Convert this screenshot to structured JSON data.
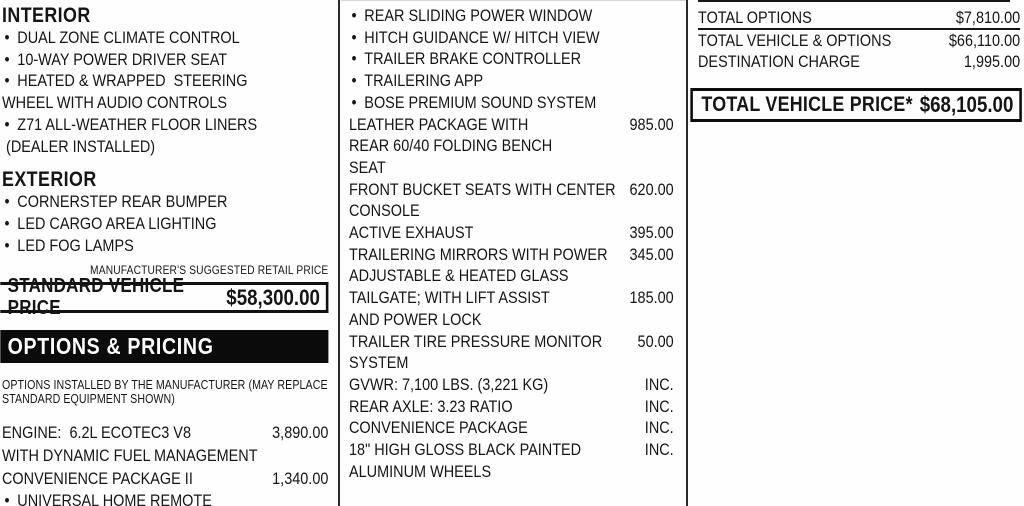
{
  "glyphs": {
    "bullet": "•"
  },
  "colors": {
    "ink": "#151515",
    "banner_bg": "#0b0b0b",
    "paper": "#fefefe"
  },
  "columns": {
    "left": {
      "rows": [
        {
          "t": "h1",
          "text": "INTERIOR"
        },
        {
          "t": "li",
          "lines": [
            "DUAL ZONE CLIMATE CONTROL"
          ]
        },
        {
          "t": "li",
          "lines": [
            "10-WAY POWER DRIVER SEAT"
          ]
        },
        {
          "t": "li",
          "lines": [
            "HEATED & WRAPPED  STEERING",
            "WHEEL WITH AUDIO CONTROLS"
          ]
        },
        {
          "t": "li",
          "lines": [
            "Z71 ALL-WEATHER FLOOR LINERS",
            " (DEALER INSTALLED)"
          ]
        },
        {
          "t": "h1",
          "text": "EXTERIOR"
        },
        {
          "t": "li",
          "lines": [
            "CORNERSTEP REAR BUMPER"
          ]
        },
        {
          "t": "li",
          "lines": [
            "LED CARGO AREA LIGHTING"
          ]
        },
        {
          "t": "li",
          "lines": [
            "LED FOG LAMPS"
          ]
        },
        {
          "t": "msrp",
          "text": "MANUFACTURER'S SUGGESTED RETAIL PRICE"
        },
        {
          "t": "pricebox",
          "label": "STANDARD VEHICLE PRICE",
          "value": "$58,300.00"
        },
        {
          "t": "banner",
          "text": "OPTIONS & PRICING"
        },
        {
          "t": "note",
          "lines": [
            "OPTIONS INSTALLED BY THE MANUFACTURER (MAY REPLACE",
            "STANDARD EQUIPMENT SHOWN)"
          ]
        },
        {
          "t": "option",
          "lines": [
            "ENGINE:  6.2L ECOTEC3 V8",
            "WITH DYNAMIC FUEL MANAGEMENT"
          ],
          "price": "3,890.00"
        },
        {
          "t": "option",
          "lines": [
            "CONVENIENCE PACKAGE II"
          ],
          "price": "1,340.00"
        },
        {
          "t": "li",
          "lines": [
            "UNIVERSAL HOME REMOTE"
          ]
        }
      ]
    },
    "middle": {
      "rows": [
        {
          "t": "li",
          "lines": [
            "REAR SLIDING POWER WINDOW"
          ]
        },
        {
          "t": "li",
          "lines": [
            "HITCH GUIDANCE W/ HITCH VIEW"
          ]
        },
        {
          "t": "li",
          "lines": [
            "TRAILER BRAKE CONTROLLER"
          ]
        },
        {
          "t": "li",
          "lines": [
            "TRAILERING APP"
          ]
        },
        {
          "t": "li",
          "lines": [
            "BOSE PREMIUM SOUND SYSTEM"
          ]
        },
        {
          "t": "option",
          "lines": [
            "LEATHER PACKAGE WITH",
            "REAR 60/40 FOLDING BENCH",
            "SEAT"
          ],
          "price": "985.00"
        },
        {
          "t": "option",
          "lines": [
            "FRONT BUCKET SEATS WITH CENTER",
            "CONSOLE"
          ],
          "price": "620.00"
        },
        {
          "t": "option",
          "lines": [
            "ACTIVE EXHAUST"
          ],
          "price": "395.00"
        },
        {
          "t": "option",
          "lines": [
            "TRAILERING MIRRORS WITH POWER",
            "ADJUSTABLE & HEATED GLASS"
          ],
          "price": "345.00"
        },
        {
          "t": "option",
          "lines": [
            "TAILGATE; WITH LIFT ASSIST",
            "AND POWER LOCK"
          ],
          "price": "185.00"
        },
        {
          "t": "option",
          "lines": [
            "TRAILER TIRE PRESSURE MONITOR",
            "SYSTEM"
          ],
          "price": "50.00"
        },
        {
          "t": "option",
          "lines": [
            "GVWR: 7,100 LBS. (3,221 KG)"
          ],
          "price": "INC."
        },
        {
          "t": "option",
          "lines": [
            "REAR AXLE: 3.23 RATIO"
          ],
          "price": "INC."
        },
        {
          "t": "option",
          "lines": [
            "CONVENIENCE PACKAGE"
          ],
          "price": "INC."
        },
        {
          "t": "option",
          "lines": [
            "18\" HIGH GLOSS BLACK PAINTED",
            "ALUMINUM WHEELS"
          ],
          "price": "INC."
        }
      ]
    },
    "right": {
      "rows": [
        {
          "t": "total",
          "label": "TOTAL OPTIONS",
          "value": "$7,810.00",
          "rule": true
        },
        {
          "t": "total",
          "label": "TOTAL VEHICLE & OPTIONS",
          "value": "$66,110.00"
        },
        {
          "t": "total",
          "label": "DESTINATION CHARGE",
          "value": "1,995.00"
        },
        {
          "t": "totalbox",
          "label": "TOTAL VEHICLE PRICE*",
          "value": "$68,105.00"
        }
      ]
    }
  }
}
